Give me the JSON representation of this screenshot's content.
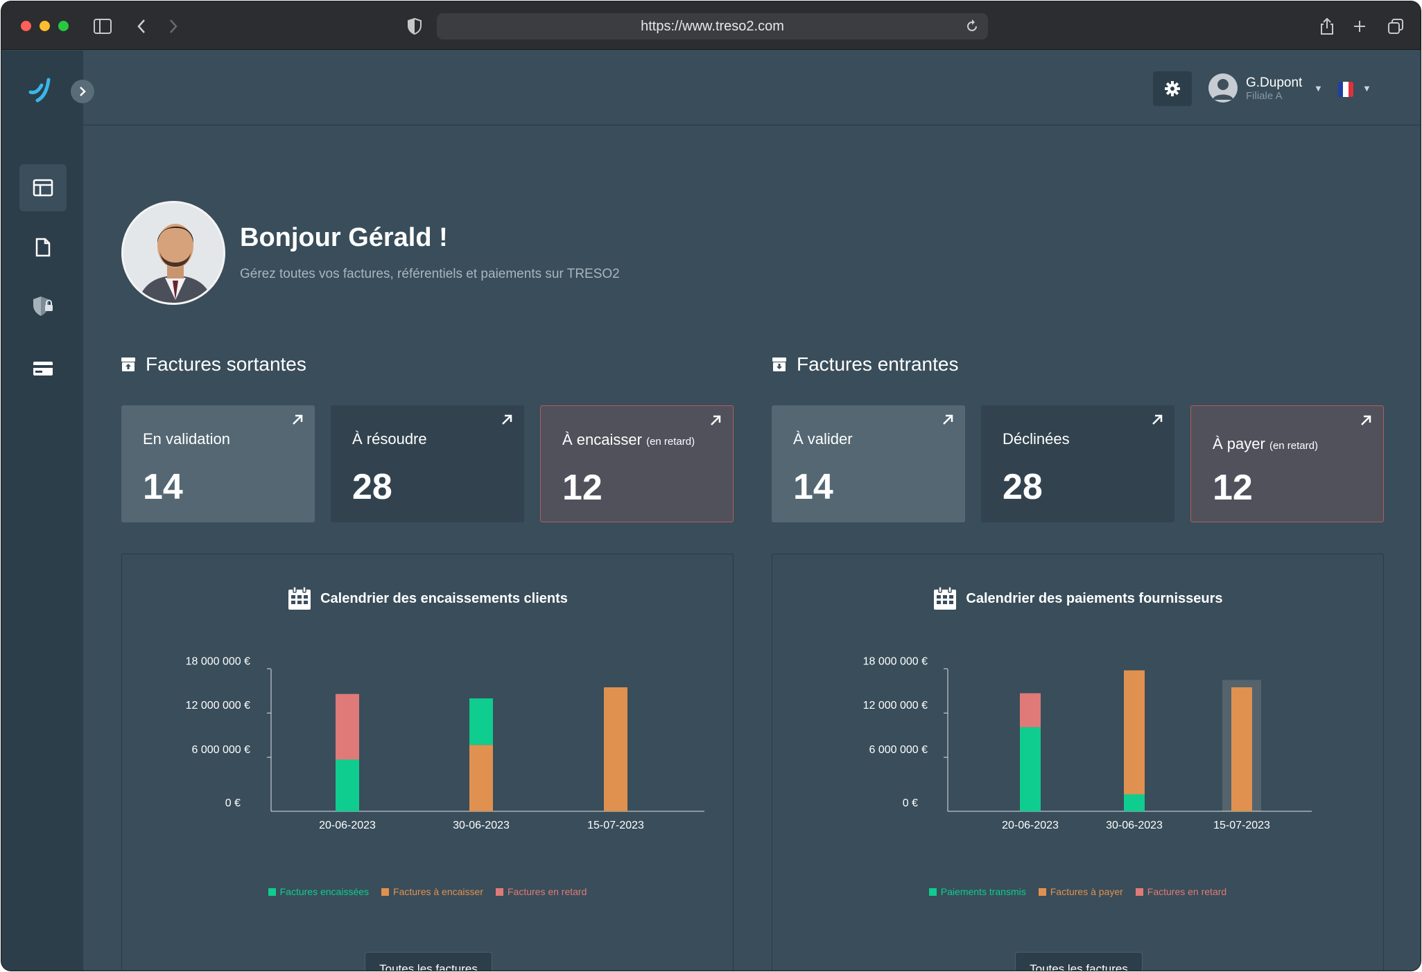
{
  "browser": {
    "url": "https://www.treso2.com"
  },
  "user": {
    "name": "G.Dupont",
    "entity": "Filiale A",
    "language_flag": "fr-flag"
  },
  "greeting": {
    "title": "Bonjour Gérald !",
    "subtitle": "Gérez toutes vos factures, référentiels et paiements sur TRESO2"
  },
  "outgoing": {
    "title": "Factures sortantes",
    "cards": [
      {
        "label": "En validation",
        "note": "",
        "value": "14",
        "style": "light"
      },
      {
        "label": "À résoudre",
        "note": "",
        "value": "28",
        "style": "dark"
      },
      {
        "label": "À encaisser",
        "note": "(en retard)",
        "value": "12",
        "style": "alert"
      }
    ]
  },
  "incoming": {
    "title": "Factures entrantes",
    "cards": [
      {
        "label": "À valider",
        "note": "",
        "value": "14",
        "style": "light"
      },
      {
        "label": "Déclinées",
        "note": "",
        "value": "28",
        "style": "dark"
      },
      {
        "label": "À payer",
        "note": "(en retard)",
        "value": "12",
        "style": "alert"
      }
    ]
  },
  "colors": {
    "green": "#0fcc8f",
    "orange": "#e0914f",
    "red": "#e07a78",
    "axis": "#dfe3e6",
    "highlight": "#55636d"
  },
  "charts": {
    "left": {
      "title": "Calendrier des encaissements clients",
      "button": "Toutes les factures"
    },
    "right": {
      "title": "Calendrier des paiements fournisseurs",
      "button": "Toutes les factures"
    }
  },
  "chart_data": [
    {
      "type": "bar",
      "stacked": true,
      "title": "Calendrier des encaissements clients",
      "categories": [
        "20-06-2023",
        "30-06-2023",
        "15-07-2023"
      ],
      "y_ticks": [
        "18 000 000 €",
        "12 000 000 €",
        "6 000 000 €",
        "0 €"
      ],
      "ylim": [
        0,
        20000000
      ],
      "series": [
        {
          "name": "Factures encaissées",
          "color": "#0fcc8f",
          "values": [
            7000000,
            0,
            0
          ]
        },
        {
          "name": "Factures à encaisser",
          "color": "#e0914f",
          "values": [
            0,
            9000000,
            16800000
          ]
        },
        {
          "name": "Factures en retard",
          "color": "#e07a78",
          "values": [
            8900000,
            0,
            0
          ]
        },
        {
          "name": "",
          "color": "#0fcc8f",
          "values": [
            0,
            6300000,
            0
          ]
        }
      ],
      "legend": [
        "Factures encaissées",
        "Factures à encaisser",
        "Factures en retard"
      ],
      "legend_position": "bottom"
    },
    {
      "type": "bar",
      "stacked": true,
      "title": "Calendrier des paiements fournisseurs",
      "categories": [
        "20-06-2023",
        "30-06-2023",
        "15-07-2023"
      ],
      "y_ticks": [
        "18 000 000 €",
        "12 000 000 €",
        "6 000 000 €",
        "0 €"
      ],
      "ylim": [
        0,
        20000000
      ],
      "highlight_category": "15-07-2023",
      "series": [
        {
          "name": "Paiements transmis",
          "color": "#0fcc8f",
          "values": [
            11400000,
            2300000,
            0
          ]
        },
        {
          "name": "Factures à payer",
          "color": "#e0914f",
          "values": [
            0,
            16800000,
            16800000
          ]
        },
        {
          "name": "Factures en retard",
          "color": "#e07a78",
          "values": [
            4600000,
            0,
            0
          ]
        }
      ],
      "legend": [
        "Paiements transmis",
        "Factures à payer",
        "Factures en retard"
      ],
      "legend_position": "bottom"
    }
  ]
}
